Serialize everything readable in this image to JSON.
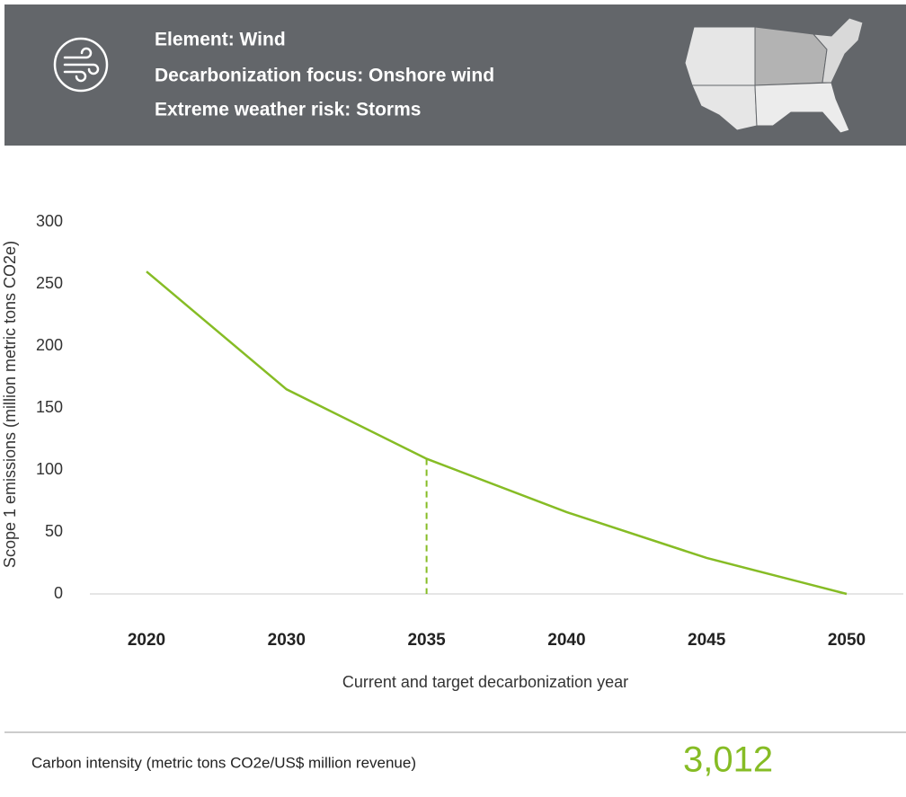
{
  "header": {
    "lines": [
      "Element: Wind",
      "Decarbonization focus: Onshore wind",
      "Extreme weather risk: Storms"
    ]
  },
  "chart_data": {
    "type": "line",
    "y_label": "Scope 1 emissions (million metric tons CO2e)",
    "x_label": "Current and target decarbonization year",
    "categories": [
      "2020",
      "2030",
      "2035",
      "2040",
      "2045",
      "2050"
    ],
    "values": [
      260,
      165,
      109,
      66,
      29,
      0
    ],
    "color": "#86bc25",
    "drop_line": "2035",
    "ylim": [
      0,
      300
    ],
    "yticks": [
      0,
      50,
      100,
      150,
      200,
      250,
      300
    ],
    "grid": false
  },
  "footer": {
    "label": "Carbon intensity (metric tons CO2e/US$ million revenue)",
    "value": "3,012"
  }
}
